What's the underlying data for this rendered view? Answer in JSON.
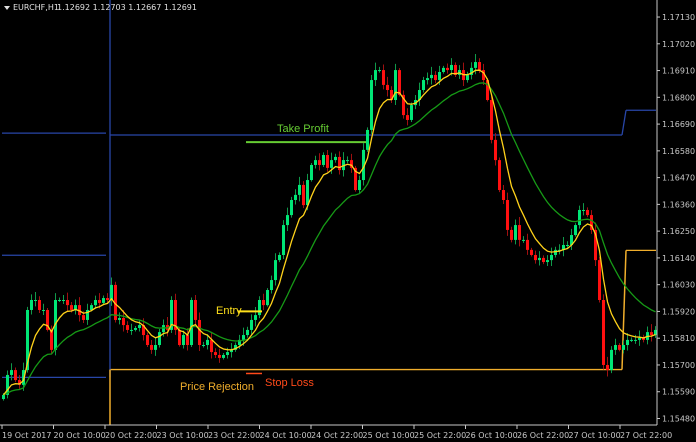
{
  "header": {
    "symbol": "EURCHF,H1",
    "quotes": "1.12692 1.12703 1.12667 1.12691"
  },
  "colors": {
    "background": "#000000",
    "bull": "#00e676",
    "bear": "#ff1010",
    "fast_ma": "#ffd21a",
    "slow_ma": "#169a16",
    "blue_levels": "#2846a8",
    "orange_levels": "#f0ae2c",
    "take_profit": "#66cc33",
    "entry": "#ffe01a",
    "stop_loss": "#ff4a1a",
    "axis": "#c8c8c8"
  },
  "chart_data": {
    "type": "candlestick",
    "title": "EURCHF,H1",
    "ylim": [
      1.1544,
      1.172
    ],
    "y_ticks": [
      "1.17130",
      "1.17020",
      "1.16910",
      "1.16800",
      "1.16690",
      "1.16580",
      "1.16470",
      "1.16360",
      "1.16250",
      "1.16140",
      "1.16030",
      "1.15920",
      "1.15810",
      "1.15700",
      "1.15590",
      "1.15480"
    ],
    "x_ticks": [
      "19 Oct 2017",
      "20 Oct 10:00",
      "20 Oct 22:00",
      "23 Oct 10:00",
      "23 Oct 22:00",
      "24 Oct 10:00",
      "24 Oct 22:00",
      "25 Oct 10:00",
      "25 Oct 22:00",
      "26 Oct 10:00",
      "26 Oct 22:00",
      "27 Oct 10:00",
      "27 Oct 22:00"
    ],
    "first_open": 1.1556,
    "closes": [
      1.15577,
      1.15659,
      1.15679,
      1.15638,
      1.15618,
      1.15679,
      1.15926,
      1.15967,
      1.15967,
      1.15926,
      1.15926,
      1.15844,
      1.15762,
      1.15967,
      1.15967,
      1.15967,
      1.15946,
      1.15926,
      1.15946,
      1.15905,
      1.15885,
      1.15926,
      1.15946,
      1.15967,
      1.15955,
      1.15975,
      1.15967,
      1.16029,
      1.15885,
      1.15893,
      1.15864,
      1.15844,
      1.15844,
      1.15852,
      1.15864,
      1.15823,
      1.15782,
      1.15762,
      1.15782,
      1.15835,
      1.15864,
      1.15844,
      1.15967,
      1.15844,
      1.15782,
      1.15823,
      1.15782,
      1.15967,
      1.15885,
      1.15782,
      1.15782,
      1.15803,
      1.15753,
      1.15741,
      1.15729,
      1.15741,
      1.15753,
      1.15762,
      1.15782,
      1.15803,
      1.15823,
      1.15844,
      1.15885,
      1.15905,
      1.15967,
      1.15946,
      1.16008,
      1.16049,
      1.16131,
      1.16152,
      1.16275,
      1.16316,
      1.16378,
      1.16399,
      1.1644,
      1.16357,
      1.1646,
      1.16522,
      1.16542,
      1.16522,
      1.16563,
      1.1651,
      1.16542,
      1.16555,
      1.16501,
      1.16542,
      1.16542,
      1.1651,
      1.16419,
      1.1646,
      1.16584,
      1.16666,
      1.16871,
      1.16912,
      1.16912,
      1.16851,
      1.1683,
      1.16789,
      1.16912,
      1.1681,
      1.16727,
      1.16707,
      1.16768,
      1.16789,
      1.1683,
      1.16871,
      1.16879,
      1.16892,
      1.16871,
      1.16904,
      1.16921,
      1.16912,
      1.16933,
      1.16892,
      1.16912,
      1.16871,
      1.16892,
      1.16921,
      1.16945,
      1.16912,
      1.16871,
      1.16789,
      1.16625,
      1.16542,
      1.16419,
      1.16378,
      1.16255,
      1.16214,
      1.16275,
      1.16214,
      1.16214,
      1.16173,
      1.16152,
      1.16131,
      1.1614,
      1.16123,
      1.16131,
      1.16152,
      1.16173,
      1.16173,
      1.16193,
      1.16193,
      1.16234,
      1.16275,
      1.16337,
      1.16337,
      1.16316,
      1.16255,
      1.16131,
      1.15967,
      1.157,
      1.15679,
      1.15762,
      1.15782,
      1.15762,
      1.15782,
      1.15803,
      1.15803,
      1.15803,
      1.15811,
      1.15803,
      1.15835,
      1.15823,
      1.15844
    ],
    "indicators": {
      "fast_ma": "yellow moving average",
      "slow_ma": "green moving average"
    },
    "levels": {
      "blue": [
        {
          "from_bar": 0,
          "to_bar": 26,
          "price": 1.16653
        },
        {
          "from_bar": 0,
          "to_bar": 26,
          "price": 1.16151
        },
        {
          "from_bar": 0,
          "to_bar": 26,
          "price": 1.15649
        },
        {
          "from_bar": 27,
          "to_bar": 155,
          "price": 1.16645
        },
        {
          "from_bar": 156,
          "to_bar": 164,
          "price": 1.16747
        }
      ],
      "orange": [
        {
          "from_bar": 27,
          "to_bar": 155,
          "price": 1.15681
        },
        {
          "from_bar": 156,
          "to_bar": 164,
          "price": 1.16171
        }
      ]
    },
    "annotations": {
      "take_profit": {
        "label": "Take Profit",
        "price": 1.16616,
        "from_bar": 61,
        "to_bar": 91
      },
      "entry": {
        "label": "Entry",
        "price": 1.1592,
        "from_bar": 59,
        "to_bar": 65
      },
      "stop_loss": {
        "label": "Stop Loss",
        "price": 1.15665,
        "from_bar": 61,
        "to_bar": 65
      },
      "price_rejection": {
        "label": "Price Rejection"
      }
    }
  }
}
